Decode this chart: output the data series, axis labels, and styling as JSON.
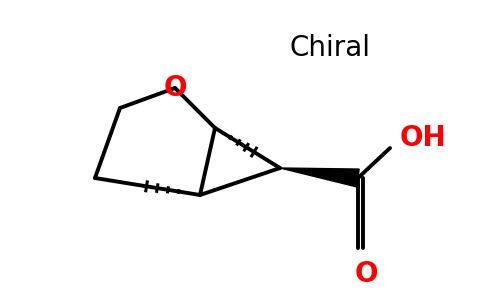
{
  "bg_color": "#ffffff",
  "chiral_text": "Chiral",
  "chiral_fontsize": 20,
  "O_label": "O",
  "O_fontsize": 20,
  "OH_label": "OH",
  "OH_fontsize": 20,
  "O2_label": "O",
  "O2_fontsize": 20,
  "red_color": "#ff0000",
  "black_color": "#000000",
  "line_width": 2.8,
  "hash_lw": 2.2,
  "n_hash": 5
}
